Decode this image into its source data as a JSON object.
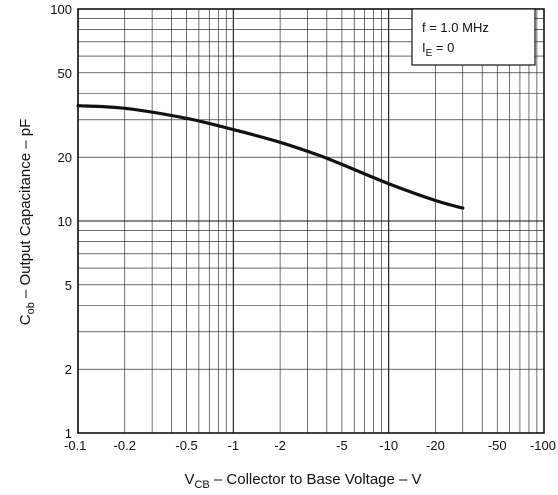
{
  "chart_data": {
    "type": "line",
    "x_scale": "log",
    "y_scale": "log",
    "xlim": [
      -0.1,
      -100
    ],
    "ylim": [
      1,
      100
    ],
    "grid": true,
    "x_ticks": [
      {
        "value": -0.1,
        "label": "-0.1"
      },
      {
        "value": -0.2,
        "label": "-0.2"
      },
      {
        "value": -0.5,
        "label": "-0.5"
      },
      {
        "value": -1,
        "label": "-1"
      },
      {
        "value": -2,
        "label": "-2"
      },
      {
        "value": -5,
        "label": "-5"
      },
      {
        "value": -10,
        "label": "-10"
      },
      {
        "value": -20,
        "label": "-20"
      },
      {
        "value": -50,
        "label": "-50"
      },
      {
        "value": -100,
        "label": "-100"
      }
    ],
    "y_ticks": [
      {
        "value": 1,
        "label": "1"
      },
      {
        "value": 2,
        "label": "2"
      },
      {
        "value": 5,
        "label": "5"
      },
      {
        "value": 10,
        "label": "10"
      },
      {
        "value": 20,
        "label": "20"
      },
      {
        "value": 50,
        "label": "50"
      },
      {
        "value": 100,
        "label": "100"
      }
    ],
    "xlabel": {
      "main": "V",
      "sub": "CB",
      "rest": " – Collector to Base Voltage – V"
    },
    "ylabel": {
      "main": "C",
      "sub": "ob",
      "rest": " – Output Capacitance – pF"
    },
    "conditions": {
      "line1": "f = 1.0 MHz",
      "line2_main": "I",
      "line2_sub": "E",
      "line2_rest": " = 0"
    },
    "series": [
      {
        "x": [
          -0.1,
          -0.2,
          -0.5,
          -1,
          -2,
          -3.5,
          -5,
          -10,
          -20,
          -30
        ],
        "y": [
          35,
          34,
          30.5,
          27,
          23.5,
          20.5,
          18.5,
          15,
          12.5,
          11.5
        ],
        "color": "#111111"
      }
    ]
  }
}
